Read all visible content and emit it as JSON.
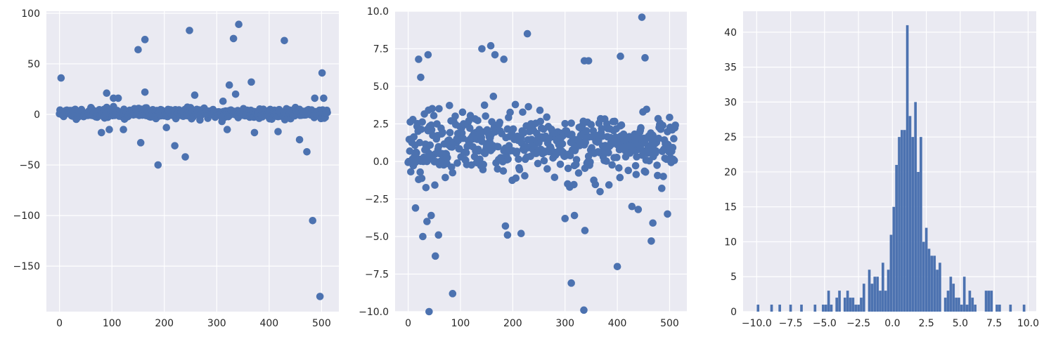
{
  "theme": {
    "plot_bg": "#eaeaf2",
    "grid": "#ffffff",
    "marker": "#4c72b0",
    "text": "#262626"
  },
  "chart_data": [
    {
      "type": "scatter",
      "xlim": [
        -25,
        533
      ],
      "ylim": [
        -195,
        102
      ],
      "xticks": [
        0,
        100,
        200,
        300,
        400,
        500
      ],
      "yticks": [
        -150,
        -100,
        -50,
        0,
        50,
        100
      ],
      "xtick_labels": [
        "0",
        "100",
        "200",
        "300",
        "400",
        "500"
      ],
      "ytick_labels": [
        "−150",
        "−100",
        "−50",
        "0",
        "50",
        "100"
      ],
      "grid": true,
      "outliers": [
        [
          3,
          36
        ],
        [
          90,
          21
        ],
        [
          103,
          16
        ],
        [
          112,
          16
        ],
        [
          150,
          64
        ],
        [
          163,
          74
        ],
        [
          248,
          83
        ],
        [
          258,
          19
        ],
        [
          332,
          75
        ],
        [
          336,
          20
        ],
        [
          342,
          89
        ],
        [
          366,
          32
        ],
        [
          429,
          73
        ],
        [
          324,
          29
        ],
        [
          312,
          13
        ],
        [
          163,
          22
        ],
        [
          155,
          -28
        ],
        [
          122,
          -15
        ],
        [
          188,
          -50
        ],
        [
          204,
          -13
        ],
        [
          220,
          -31
        ],
        [
          240,
          -42
        ],
        [
          310,
          -7
        ],
        [
          320,
          -15
        ],
        [
          372,
          -18
        ],
        [
          417,
          -17
        ],
        [
          458,
          -25
        ],
        [
          472,
          -37
        ],
        [
          483,
          -105
        ],
        [
          497,
          -180
        ],
        [
          501,
          41
        ],
        [
          504,
          16
        ],
        [
          487,
          16
        ],
        [
          80,
          -18
        ],
        [
          95,
          -15
        ]
      ]
    },
    {
      "type": "scatter",
      "xlim": [
        -25,
        533
      ],
      "ylim": [
        -10,
        10
      ],
      "xticks": [
        0,
        100,
        200,
        300,
        400,
        500
      ],
      "yticks": [
        -10,
        -7.5,
        -5,
        -2.5,
        0,
        2.5,
        5,
        7.5,
        10
      ],
      "xtick_labels": [
        "0",
        "100",
        "200",
        "300",
        "400",
        "500"
      ],
      "ytick_labels": [
        "−10.0",
        "−7.5",
        "−5.0",
        "−2.5",
        "0.0",
        "2.5",
        "5.0",
        "7.5",
        "10.0"
      ],
      "grid": true,
      "outliers": [
        [
          20,
          6.8
        ],
        [
          24,
          5.6
        ],
        [
          38,
          7.1
        ],
        [
          141,
          7.5
        ],
        [
          158,
          7.7
        ],
        [
          166,
          7.1
        ],
        [
          183,
          6.8
        ],
        [
          228,
          8.5
        ],
        [
          447,
          9.6
        ],
        [
          453,
          6.9
        ],
        [
          406,
          7.0
        ],
        [
          337,
          6.7
        ],
        [
          345,
          6.7
        ],
        [
          28,
          -5.0
        ],
        [
          52,
          -6.3
        ],
        [
          58,
          -4.9
        ],
        [
          85,
          -8.8
        ],
        [
          40,
          -10.0
        ],
        [
          312,
          -8.1
        ],
        [
          336,
          -9.9
        ],
        [
          400,
          -7.0
        ],
        [
          465,
          -5.3
        ],
        [
          468,
          -4.1
        ],
        [
          186,
          -4.3
        ],
        [
          190,
          -4.9
        ],
        [
          216,
          -4.8
        ],
        [
          300,
          -3.8
        ],
        [
          318,
          -3.6
        ],
        [
          338,
          -4.6
        ],
        [
          496,
          -3.5
        ],
        [
          428,
          -3.0
        ],
        [
          440,
          -3.2
        ],
        [
          14,
          -3.1
        ],
        [
          44,
          -3.6
        ],
        [
          36,
          -4.0
        ]
      ]
    },
    {
      "type": "bar",
      "xlim": [
        -11.0,
        10.6
      ],
      "ylim": [
        0,
        43
      ],
      "xticks": [
        -10,
        -7.5,
        -5,
        -2.5,
        0,
        2.5,
        5,
        7.5,
        10
      ],
      "yticks": [
        0,
        5,
        10,
        15,
        20,
        25,
        30,
        35,
        40
      ],
      "xtick_labels": [
        "−10.0",
        "−7.5",
        "−5.0",
        "−2.5",
        "0.0",
        "2.5",
        "5.0",
        "7.5",
        "10.0"
      ],
      "ytick_labels": [
        "0",
        "5",
        "10",
        "15",
        "20",
        "25",
        "30",
        "35",
        "40"
      ],
      "grid": true,
      "bin_width": 0.19,
      "bins": [
        [
          -9.9,
          1
        ],
        [
          -8.9,
          1
        ],
        [
          -8.3,
          1
        ],
        [
          -7.5,
          1
        ],
        [
          -6.7,
          1
        ],
        [
          -5.7,
          1
        ],
        [
          -5.1,
          1
        ],
        [
          -4.9,
          1
        ],
        [
          -4.7,
          3
        ],
        [
          -4.5,
          1
        ],
        [
          -4.1,
          2
        ],
        [
          -3.9,
          3
        ],
        [
          -3.5,
          2
        ],
        [
          -3.3,
          3
        ],
        [
          -3.1,
          2
        ],
        [
          -2.9,
          2
        ],
        [
          -2.7,
          1
        ],
        [
          -2.5,
          1
        ],
        [
          -2.3,
          2
        ],
        [
          -2.1,
          4
        ],
        [
          -1.7,
          6
        ],
        [
          -1.5,
          4
        ],
        [
          -1.3,
          5
        ],
        [
          -1.1,
          5
        ],
        [
          -0.9,
          3
        ],
        [
          -0.7,
          7
        ],
        [
          -0.5,
          3
        ],
        [
          -0.3,
          6
        ],
        [
          -0.1,
          11
        ],
        [
          0.1,
          15
        ],
        [
          0.3,
          21
        ],
        [
          0.5,
          25
        ],
        [
          0.7,
          26
        ],
        [
          0.9,
          26
        ],
        [
          1.1,
          41
        ],
        [
          1.3,
          28
        ],
        [
          1.5,
          25
        ],
        [
          1.7,
          30
        ],
        [
          1.9,
          20
        ],
        [
          2.1,
          25
        ],
        [
          2.3,
          10
        ],
        [
          2.5,
          12
        ],
        [
          2.7,
          9
        ],
        [
          2.9,
          8
        ],
        [
          3.1,
          8
        ],
        [
          3.3,
          6
        ],
        [
          3.5,
          7
        ],
        [
          3.9,
          2
        ],
        [
          4.1,
          3
        ],
        [
          4.3,
          5
        ],
        [
          4.5,
          4
        ],
        [
          4.7,
          2
        ],
        [
          4.9,
          2
        ],
        [
          5.1,
          1
        ],
        [
          5.3,
          5
        ],
        [
          5.5,
          1
        ],
        [
          5.7,
          3
        ],
        [
          5.9,
          2
        ],
        [
          6.1,
          1
        ],
        [
          6.9,
          3
        ],
        [
          7.1,
          3
        ],
        [
          7.3,
          3
        ],
        [
          7.7,
          1
        ],
        [
          7.9,
          1
        ],
        [
          8.7,
          1
        ],
        [
          9.7,
          1
        ]
      ]
    }
  ]
}
